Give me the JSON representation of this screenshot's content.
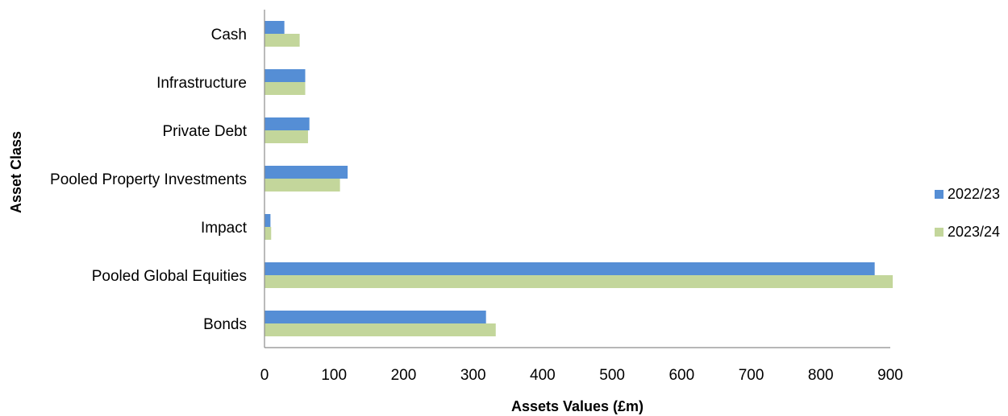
{
  "chart_data": {
    "type": "bar",
    "orientation": "horizontal",
    "title": "",
    "xlabel": "Assets Values (£m)",
    "ylabel": "Asset Class",
    "categories": [
      "Cash",
      "Infrastructure",
      "Private Debt",
      "Pooled Property Investments",
      "Impact",
      "Pooled Global Equities",
      "Bonds"
    ],
    "series": [
      {
        "name": "2022/23",
        "color": "#558ED5",
        "values": [
          28,
          58,
          64,
          119,
          8,
          877,
          318
        ]
      },
      {
        "name": "2023/24",
        "color": "#C3D69B",
        "values": [
          50,
          58,
          62,
          108,
          9,
          903,
          332
        ]
      }
    ],
    "xlim": [
      0,
      900
    ],
    "xticks": [
      0,
      100,
      200,
      300,
      400,
      500,
      600,
      700,
      800,
      900
    ],
    "grid": false,
    "legend_position": "right"
  }
}
